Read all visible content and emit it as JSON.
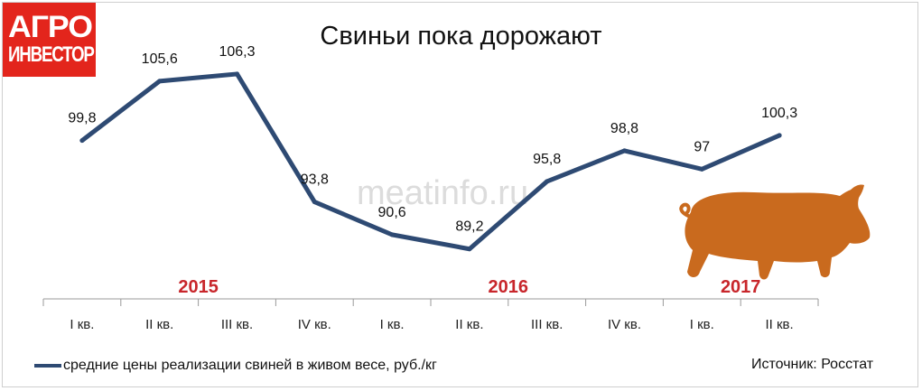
{
  "logo": {
    "line1": "АГРО",
    "line2": "ИНВЕСТОР"
  },
  "watermark": "meatinfo.ru",
  "colors": {
    "line": "#2e4a73",
    "year": "#c8262b",
    "logo_bg": "#e3251c",
    "pig": "#c96a1e"
  },
  "icons": {
    "pig": "pig-icon"
  },
  "chart_data": {
    "type": "line",
    "title": "Свиньи пока дорожают",
    "categories": [
      "I кв.",
      "II кв.",
      "III кв.",
      "IV кв.",
      "I кв.",
      "II кв.",
      "III кв.",
      "IV кв.",
      "I кв.",
      "II кв."
    ],
    "year_groups": [
      {
        "label": "2015",
        "start": 0,
        "end": 3
      },
      {
        "label": "2016",
        "start": 4,
        "end": 7
      },
      {
        "label": "2017",
        "start": 8,
        "end": 9
      }
    ],
    "series": [
      {
        "name": "средние цены реализации свиней в живом весе, руб./кг",
        "values": [
          99.8,
          105.6,
          106.3,
          93.8,
          90.6,
          89.2,
          95.8,
          98.8,
          97,
          100.3
        ],
        "value_labels": [
          "99,8",
          "105,6",
          "106,3",
          "93,8",
          "90,6",
          "89,2",
          "95,8",
          "98,8",
          "97",
          "100,3"
        ]
      }
    ],
    "xlabel": "",
    "ylabel": "",
    "ylim": [
      80,
      110
    ],
    "grid": false,
    "legend": "bottom-left"
  },
  "source": "Источник: Росстат"
}
